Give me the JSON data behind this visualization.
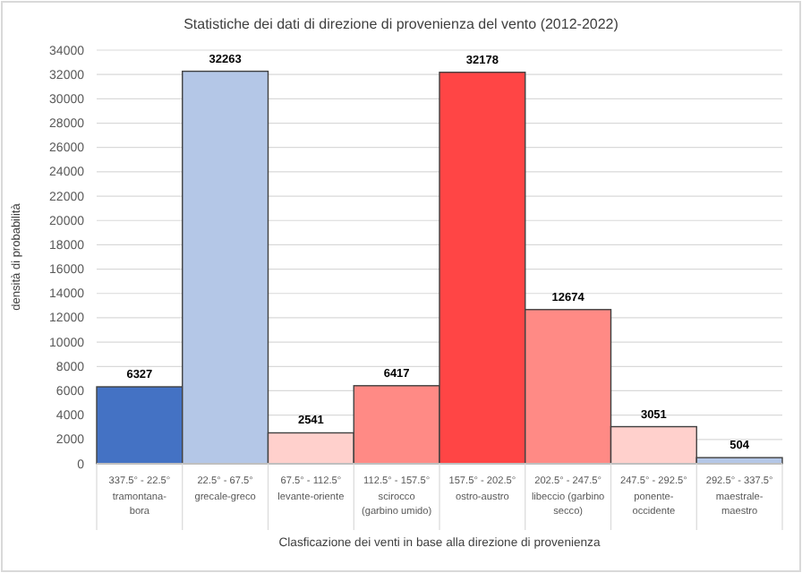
{
  "chart_data": {
    "type": "bar",
    "title": "Statistiche dei dati di direzione di provenienza del vento (2012-2022)",
    "xlabel": "Clasficazione dei venti in base alla direzione di provenienza",
    "ylabel": "densità di probabilità",
    "categories": [
      "337.5° - 22.5°\ntramontana-\nbora",
      "22.5° - 67.5°\ngrecale-greco",
      "67.5° - 112.5°\nlevante-oriente",
      "112.5° - 157.5°\nscirocco\n(garbino umido)",
      "157.5° - 202.5°\nostro-austro",
      "202.5° - 247.5°\nlibeccio (garbino\nsecco)",
      "247.5° - 292.5°\nponente-\noccidente",
      "292.5° - 337.5°\nmaestrale-\nmaestro"
    ],
    "values": [
      6327,
      32263,
      2541,
      6417,
      32178,
      12674,
      3051,
      504
    ],
    "colors": [
      "#4472c4",
      "#b4c7e7",
      "#ffd0cc",
      "#ff8a85",
      "#ff4545",
      "#ff8a85",
      "#ffd0cc",
      "#b4c7e7"
    ],
    "ylim": [
      0,
      34000
    ],
    "yticks": [
      0,
      2000,
      4000,
      6000,
      8000,
      10000,
      12000,
      14000,
      16000,
      18000,
      20000,
      22000,
      24000,
      26000,
      28000,
      30000,
      32000,
      34000
    ],
    "grid": "y",
    "data_labels": true
  }
}
